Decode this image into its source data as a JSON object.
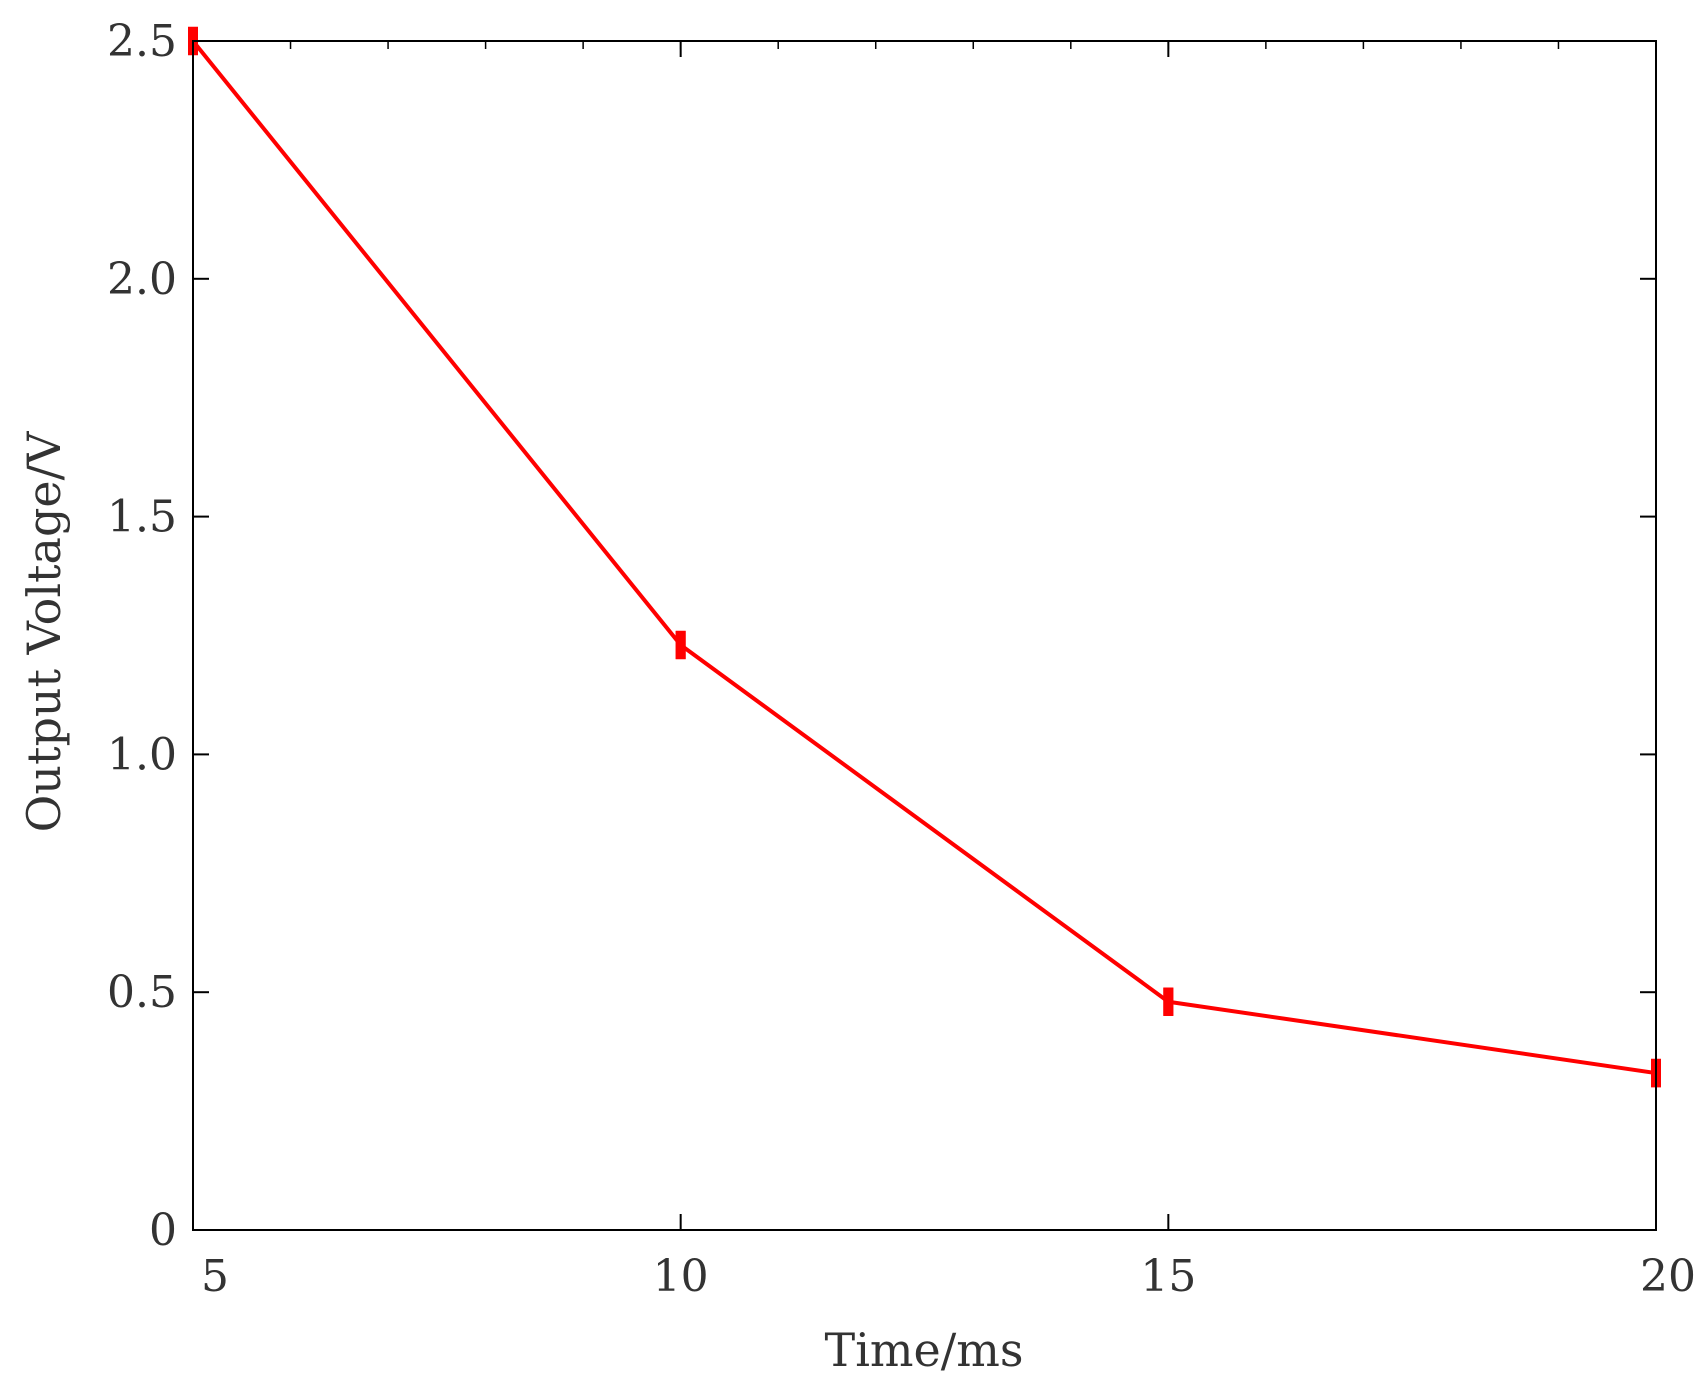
{
  "chart_data": {
    "type": "line",
    "xlabel": "Time/ms",
    "ylabel": "Output Voltage/V",
    "xlim": [
      5,
      20
    ],
    "ylim": [
      0,
      2.5
    ],
    "x_ticks": [
      5,
      10,
      15,
      20
    ],
    "x_tick_labels": [
      "5",
      "10",
      "15",
      "20"
    ],
    "y_ticks": [
      0,
      0.5,
      1.0,
      1.5,
      2.0,
      2.5
    ],
    "y_tick_labels": [
      "0",
      "0.5",
      "1.0",
      "1.5",
      "2.0",
      "2.5"
    ],
    "grid": false,
    "colors": {
      "series": "#ff0000",
      "axis": "#000000",
      "text": "#333333"
    },
    "series": [
      {
        "x": [
          5,
          10,
          15,
          20
        ],
        "y": [
          2.5,
          1.23,
          0.48,
          0.33
        ],
        "error": [
          0.03,
          0.03,
          0.03,
          0.03
        ]
      }
    ]
  }
}
